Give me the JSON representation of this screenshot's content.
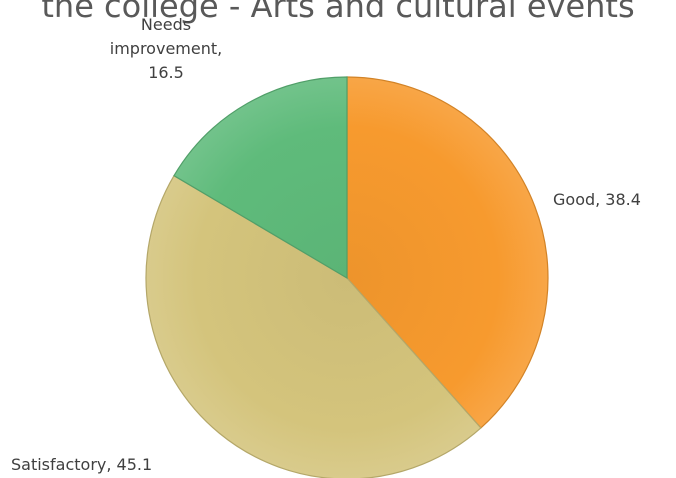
{
  "chart_data": {
    "type": "pie",
    "title": "the college - Arts and cultural events",
    "categories": [
      "Good",
      "Satisfactory",
      "Needs improvement"
    ],
    "values": [
      38.4,
      45.1,
      16.5
    ],
    "colors": [
      "#f79a2e",
      "#d4c47c",
      "#5fbb7b"
    ],
    "legend": "none",
    "data_labels": [
      [
        "Good, 38.4"
      ],
      [
        "Satisfactory, 45.1"
      ],
      [
        "Needs",
        "improvement,",
        "16.5"
      ]
    ]
  }
}
